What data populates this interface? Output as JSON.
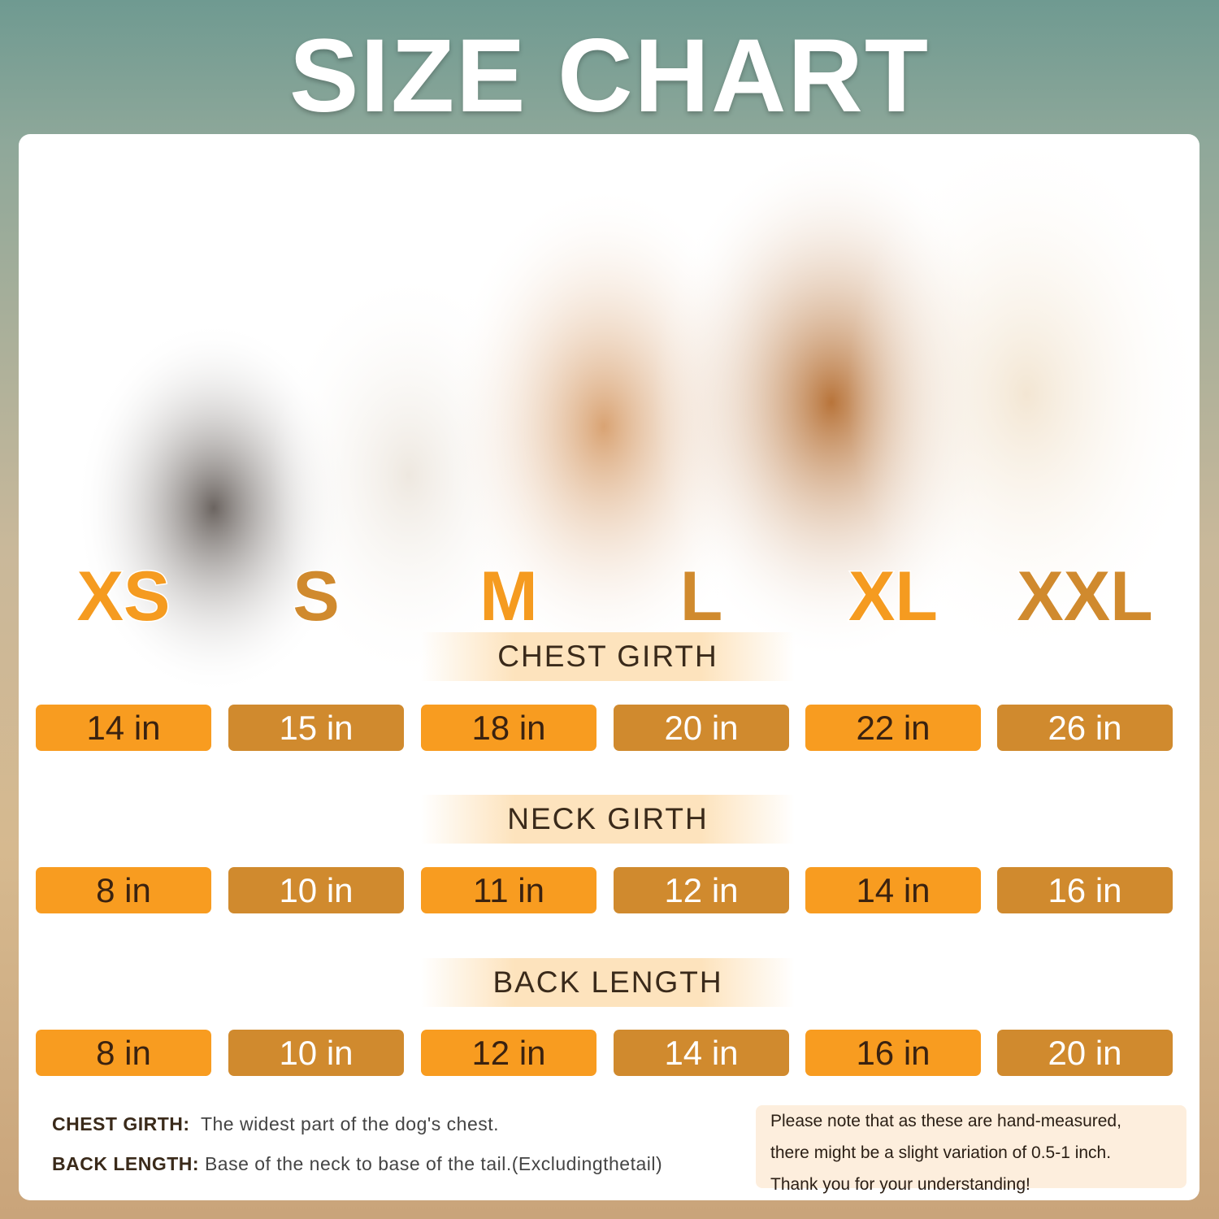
{
  "title": "SIZE CHART",
  "colors": {
    "orange": "#F89C20",
    "dark_orange": "#D08A2E",
    "band": "#FDE3BD",
    "notice_bg": "#FDEEDD"
  },
  "sizes": [
    "XS",
    "S",
    "M",
    "L",
    "XL",
    "XXL"
  ],
  "sections": [
    {
      "label": "CHEST GIRTH",
      "values": [
        "14 in",
        "15 in",
        "18 in",
        "20 in",
        "22 in",
        "26 in"
      ]
    },
    {
      "label": "NECK GIRTH",
      "values": [
        "8 in",
        "10 in",
        "11 in",
        "12 in",
        "14 in",
        "16 in"
      ]
    },
    {
      "label": "BACK LENGTH",
      "values": [
        "8 in",
        "10 in",
        "12 in",
        "14 in",
        "16 in",
        "20 in"
      ]
    }
  ],
  "notes": [
    {
      "term": "CHEST GIRTH:",
      "text": "The widest part of the dog's chest."
    },
    {
      "term": "BACK LENGTH:",
      "text": "Base of the neck to base of the tail.(Excludingthetail)"
    }
  ],
  "notice": [
    "Please note that as these are hand-measured,",
    "there might be a slight variation of 0.5-1 inch.",
    "Thank you for your understanding!"
  ]
}
